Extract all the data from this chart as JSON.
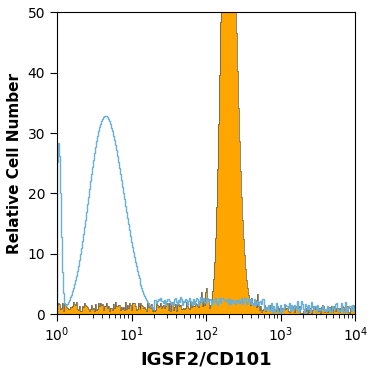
{
  "title": "",
  "xlabel": "IGSF2/CD101",
  "ylabel": "Relative Cell Number",
  "xlim_log": [
    1,
    10000
  ],
  "ylim": [
    0,
    50
  ],
  "yticks": [
    0,
    10,
    20,
    30,
    40,
    50
  ],
  "orange_color": "#FFA500",
  "blue_color": "#6AAFD6",
  "background_color": "#ffffff",
  "xlabel_fontsize": 13,
  "ylabel_fontsize": 11,
  "tick_fontsize": 10
}
